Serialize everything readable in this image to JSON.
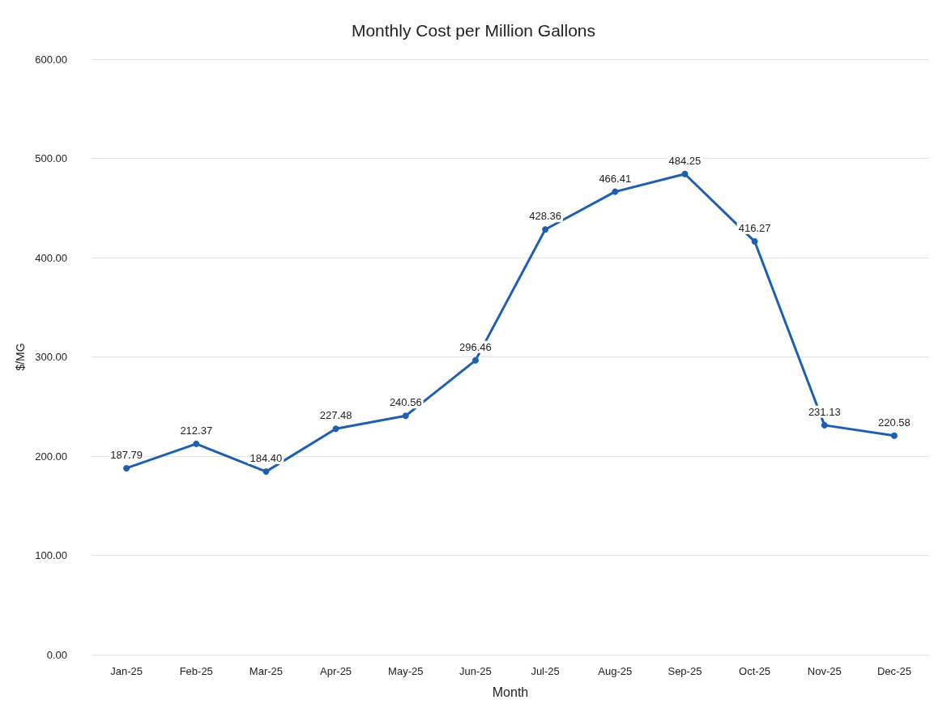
{
  "chart_data": {
    "type": "line",
    "title": "Monthly Cost per Million Gallons",
    "xlabel": "Month",
    "ylabel": "$/MG",
    "categories": [
      "Jan-25",
      "Feb-25",
      "Mar-25",
      "Apr-25",
      "May-25",
      "Jun-25",
      "Jul-25",
      "Aug-25",
      "Sep-25",
      "Oct-25",
      "Nov-25",
      "Dec-25"
    ],
    "series": [
      {
        "color": "#1f5fb0",
        "values": [
          187.79,
          212.37,
          184.4,
          227.48,
          240.56,
          296.46,
          428.36,
          466.41,
          484.25,
          416.27,
          231.13,
          220.58
        ],
        "value_labels": [
          "187.79",
          "212.37",
          "184.40",
          "227.48",
          "240.56",
          "296.46",
          "428.36",
          "466.41",
          "484.25",
          "416.27",
          "231.13",
          "220.58"
        ]
      }
    ],
    "ylim": [
      0,
      600
    ],
    "yticks": [
      {
        "value": 0,
        "label": "0.00"
      },
      {
        "value": 100,
        "label": "100.00"
      },
      {
        "value": 200,
        "label": "200.00"
      },
      {
        "value": 300,
        "label": "300.00"
      },
      {
        "value": 400,
        "label": "400.00"
      },
      {
        "value": 500,
        "label": "500.00"
      },
      {
        "value": 600,
        "label": "600.00"
      }
    ],
    "grid": "y",
    "marker": "circle",
    "line_style": "solid"
  }
}
